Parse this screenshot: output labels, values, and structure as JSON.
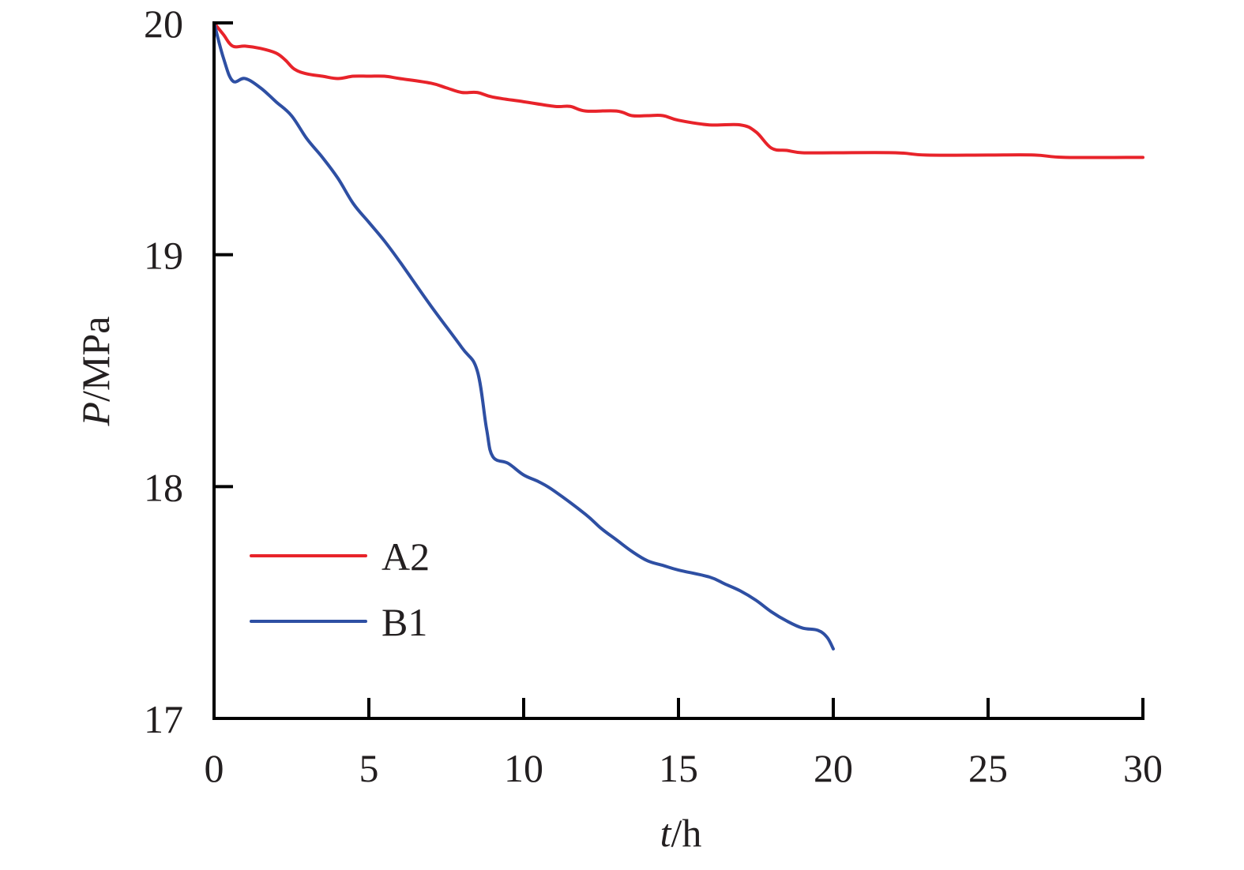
{
  "chart_data": {
    "type": "line",
    "title": "",
    "xlabel": {
      "italic": "t",
      "rest": "/h"
    },
    "ylabel": {
      "italic": "P",
      "rest": "/MPa"
    },
    "xlim": [
      0,
      30
    ],
    "ylim": [
      17,
      20
    ],
    "x_ticks": [
      0,
      5,
      10,
      15,
      20,
      25,
      30
    ],
    "y_ticks": [
      17,
      18,
      19,
      20
    ],
    "x_tick_labels": [
      "0",
      "5",
      "10",
      "15",
      "20",
      "25",
      "30"
    ],
    "y_tick_labels": [
      "17",
      "18",
      "19",
      "20"
    ],
    "grid": false,
    "legend_position": "bottom-left",
    "series": [
      {
        "name": "A2",
        "color": "#e8232a",
        "points": [
          [
            0,
            20.0
          ],
          [
            0.3,
            19.95
          ],
          [
            0.6,
            19.9
          ],
          [
            1.0,
            19.9
          ],
          [
            1.5,
            19.89
          ],
          [
            2.0,
            19.87
          ],
          [
            2.3,
            19.84
          ],
          [
            2.6,
            19.8
          ],
          [
            3.0,
            19.78
          ],
          [
            3.5,
            19.77
          ],
          [
            4.0,
            19.76
          ],
          [
            4.5,
            19.77
          ],
          [
            5.0,
            19.77
          ],
          [
            5.5,
            19.77
          ],
          [
            6.0,
            19.76
          ],
          [
            7.0,
            19.74
          ],
          [
            7.5,
            19.72
          ],
          [
            8.0,
            19.7
          ],
          [
            8.5,
            19.7
          ],
          [
            9.0,
            19.68
          ],
          [
            10.0,
            19.66
          ],
          [
            11.0,
            19.64
          ],
          [
            11.5,
            19.64
          ],
          [
            12.0,
            19.62
          ],
          [
            13.0,
            19.62
          ],
          [
            13.5,
            19.6
          ],
          [
            14.0,
            19.6
          ],
          [
            14.5,
            19.6
          ],
          [
            15.0,
            19.58
          ],
          [
            16.0,
            19.56
          ],
          [
            17.0,
            19.56
          ],
          [
            17.5,
            19.53
          ],
          [
            18.0,
            19.46
          ],
          [
            18.5,
            19.45
          ],
          [
            19.0,
            19.44
          ],
          [
            20.0,
            19.44
          ],
          [
            22.0,
            19.44
          ],
          [
            23.0,
            19.43
          ],
          [
            25.0,
            19.43
          ],
          [
            26.5,
            19.43
          ],
          [
            27.5,
            19.42
          ],
          [
            30.0,
            19.42
          ]
        ]
      },
      {
        "name": "B1",
        "color": "#2e4fa3",
        "points": [
          [
            0,
            20.0
          ],
          [
            0.3,
            19.85
          ],
          [
            0.6,
            19.75
          ],
          [
            1.0,
            19.76
          ],
          [
            1.5,
            19.72
          ],
          [
            2.0,
            19.66
          ],
          [
            2.5,
            19.6
          ],
          [
            3.0,
            19.5
          ],
          [
            3.5,
            19.42
          ],
          [
            4.0,
            19.33
          ],
          [
            4.5,
            19.22
          ],
          [
            5.0,
            19.14
          ],
          [
            5.5,
            19.06
          ],
          [
            6.0,
            18.97
          ],
          [
            7.0,
            18.78
          ],
          [
            8.0,
            18.6
          ],
          [
            8.5,
            18.5
          ],
          [
            8.8,
            18.25
          ],
          [
            9.0,
            18.13
          ],
          [
            9.5,
            18.1
          ],
          [
            10.0,
            18.05
          ],
          [
            10.5,
            18.02
          ],
          [
            11.0,
            17.98
          ],
          [
            12.0,
            17.88
          ],
          [
            12.5,
            17.82
          ],
          [
            13.0,
            17.77
          ],
          [
            13.5,
            17.72
          ],
          [
            14.0,
            17.68
          ],
          [
            14.5,
            17.66
          ],
          [
            15.0,
            17.64
          ],
          [
            16.0,
            17.61
          ],
          [
            16.5,
            17.58
          ],
          [
            17.0,
            17.55
          ],
          [
            17.5,
            17.51
          ],
          [
            18.0,
            17.46
          ],
          [
            18.5,
            17.42
          ],
          [
            19.0,
            17.39
          ],
          [
            19.5,
            17.38
          ],
          [
            19.8,
            17.35
          ],
          [
            20.0,
            17.3
          ]
        ]
      }
    ]
  }
}
